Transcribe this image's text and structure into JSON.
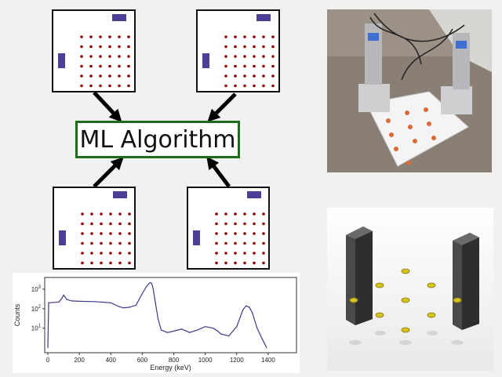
{
  "diagram": {
    "center_label": "ML Algorithm",
    "accent_green": "#1e6b1e",
    "detector_color": "#4b3f97",
    "source_point_color": "#8b0000"
  },
  "layouts": [
    {
      "detectors": [
        "top-right",
        "left"
      ]
    },
    {
      "detectors": [
        "top-right",
        "left"
      ]
    },
    {
      "detectors": [
        "top-right",
        "left"
      ]
    },
    {
      "detectors": [
        "top-right",
        "left"
      ]
    }
  ],
  "chart_data": {
    "type": "line",
    "xlabel": "Energy (keV)",
    "ylabel": "Counts",
    "xlim": [
      -20,
      1580
    ],
    "x_ticks": [
      0,
      200,
      400,
      600,
      800,
      1000,
      1200,
      1400
    ],
    "y_scale": "log",
    "y_ticks": [
      "10^1",
      "10^2",
      "10^3"
    ],
    "line_color": "#3a3a8c",
    "series": [
      {
        "x": [
          0,
          5,
          40,
          70,
          90,
          100,
          120,
          150,
          200,
          300,
          400,
          450,
          480,
          520,
          560,
          600,
          630,
          650,
          660,
          670,
          680,
          700,
          720,
          760,
          800,
          850,
          900,
          950,
          1000,
          1050,
          1080,
          1100,
          1150,
          1200,
          1240,
          1260,
          1280,
          1300,
          1330,
          1360,
          1390
        ],
        "y": [
          1,
          200,
          210,
          220,
          350,
          500,
          300,
          250,
          240,
          230,
          200,
          130,
          110,
          120,
          150,
          600,
          1500,
          2200,
          2000,
          1000,
          300,
          30,
          8,
          6,
          7,
          9,
          6,
          8,
          12,
          10,
          7,
          5,
          4,
          12,
          90,
          140,
          120,
          60,
          10,
          3,
          1
        ]
      }
    ]
  }
}
